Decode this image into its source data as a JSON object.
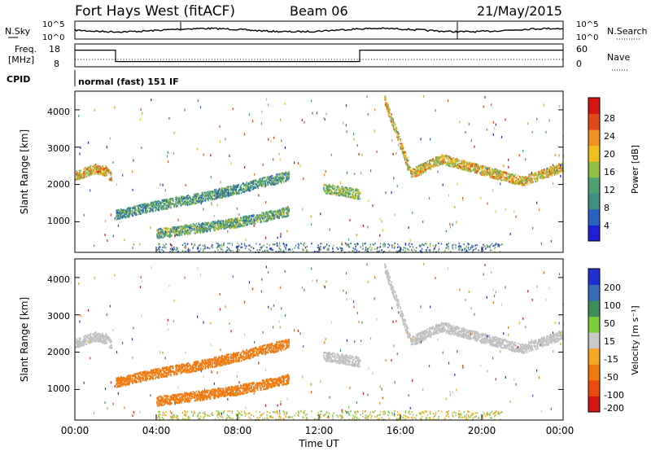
{
  "header": {
    "station": "Fort Hays West (fitACF)",
    "beam": "Beam 06",
    "date": "21/May/2015"
  },
  "panels": {
    "noise": {
      "label": "N.Sky",
      "right_label": "N.Search",
      "left_ticks": [
        "10^5",
        "10^0"
      ],
      "right_ticks": [
        "10^5",
        "10^0"
      ]
    },
    "freq": {
      "label_line1": "Freq.",
      "label_line2": "[MHz]",
      "right_label": "Nave",
      "left_ticks": [
        "18",
        "8"
      ],
      "right_ticks": [
        "60",
        "0"
      ]
    },
    "cpid": {
      "label": "CPID",
      "text": "normal (fast) 151 IF"
    }
  },
  "power_panel": {
    "ylabel": "Slant Range [km]",
    "yticks": [
      "1000",
      "2000",
      "3000",
      "4000"
    ],
    "colorbar_label": "Power [dB]",
    "colorbar_ticks": [
      "4",
      "8",
      "12",
      "16",
      "20",
      "24",
      "28"
    ]
  },
  "velocity_panel": {
    "ylabel": "Slant Range [km]",
    "yticks": [
      "1000",
      "2000",
      "3000",
      "4000"
    ],
    "colorbar_label": "Velocity [m s⁻¹]",
    "colorbar_ticks": [
      "200",
      "100",
      "50",
      "15",
      "-15",
      "-50",
      "-100",
      "-200"
    ]
  },
  "xaxis": {
    "label": "Time UT",
    "ticks": [
      "00:00",
      "04:00",
      "08:00",
      "12:00",
      "16:00",
      "20:00",
      "00:00"
    ]
  },
  "colors": {
    "power_scale": [
      "#1f1fd6",
      "#2a5fc0",
      "#3f8e82",
      "#4fa070",
      "#8fc045",
      "#f0c020",
      "#f09020",
      "#e04a18",
      "#d61414"
    ],
    "velocity_scale": [
      "#1f2fd0",
      "#3a6ab8",
      "#3f8e5a",
      "#7ccd3c",
      "#c8c8c8",
      "#f5a623",
      "#f07a10",
      "#e84a10",
      "#d61414"
    ],
    "ground_scatter": "#c0c0c0"
  },
  "chart_data": {
    "type": "heatmap",
    "x_unit": "hours UT",
    "x_range": [
      0,
      24
    ],
    "y_unit": "km",
    "y_range": [
      180,
      4500
    ],
    "freq_trace_mhz": [
      {
        "t_start": 0,
        "t_end": 2,
        "value": 16
      },
      {
        "t_start": 2,
        "t_end": 14,
        "value": 11
      },
      {
        "t_start": 14,
        "t_end": 24,
        "value": 16
      }
    ],
    "nave_approx": 15,
    "power_features": [
      {
        "name": "band-a",
        "t": [
          0,
          0.5,
          1,
          1.5,
          1.8
        ],
        "range_km": [
          2250,
          2350,
          2450,
          2380,
          2200
        ],
        "db": 20
      },
      {
        "name": "band-b",
        "t": [
          2,
          4,
          6,
          8,
          10.5
        ],
        "range_km": [
          1200,
          1450,
          1650,
          1900,
          2250
        ],
        "db": 10
      },
      {
        "name": "band-c",
        "t": [
          4,
          6,
          8,
          10.5
        ],
        "range_km": [
          700,
          850,
          1000,
          1300
        ],
        "db": 12
      },
      {
        "name": "band-d",
        "t": [
          12.2,
          13,
          14
        ],
        "range_km": [
          1900,
          1850,
          1750
        ],
        "db": 14
      },
      {
        "name": "band-e",
        "t": [
          15.2,
          16.5,
          18,
          20,
          22,
          24
        ],
        "range_km": [
          4300,
          2300,
          2700,
          2400,
          2100,
          2500
        ],
        "db": 20
      }
    ]
  }
}
